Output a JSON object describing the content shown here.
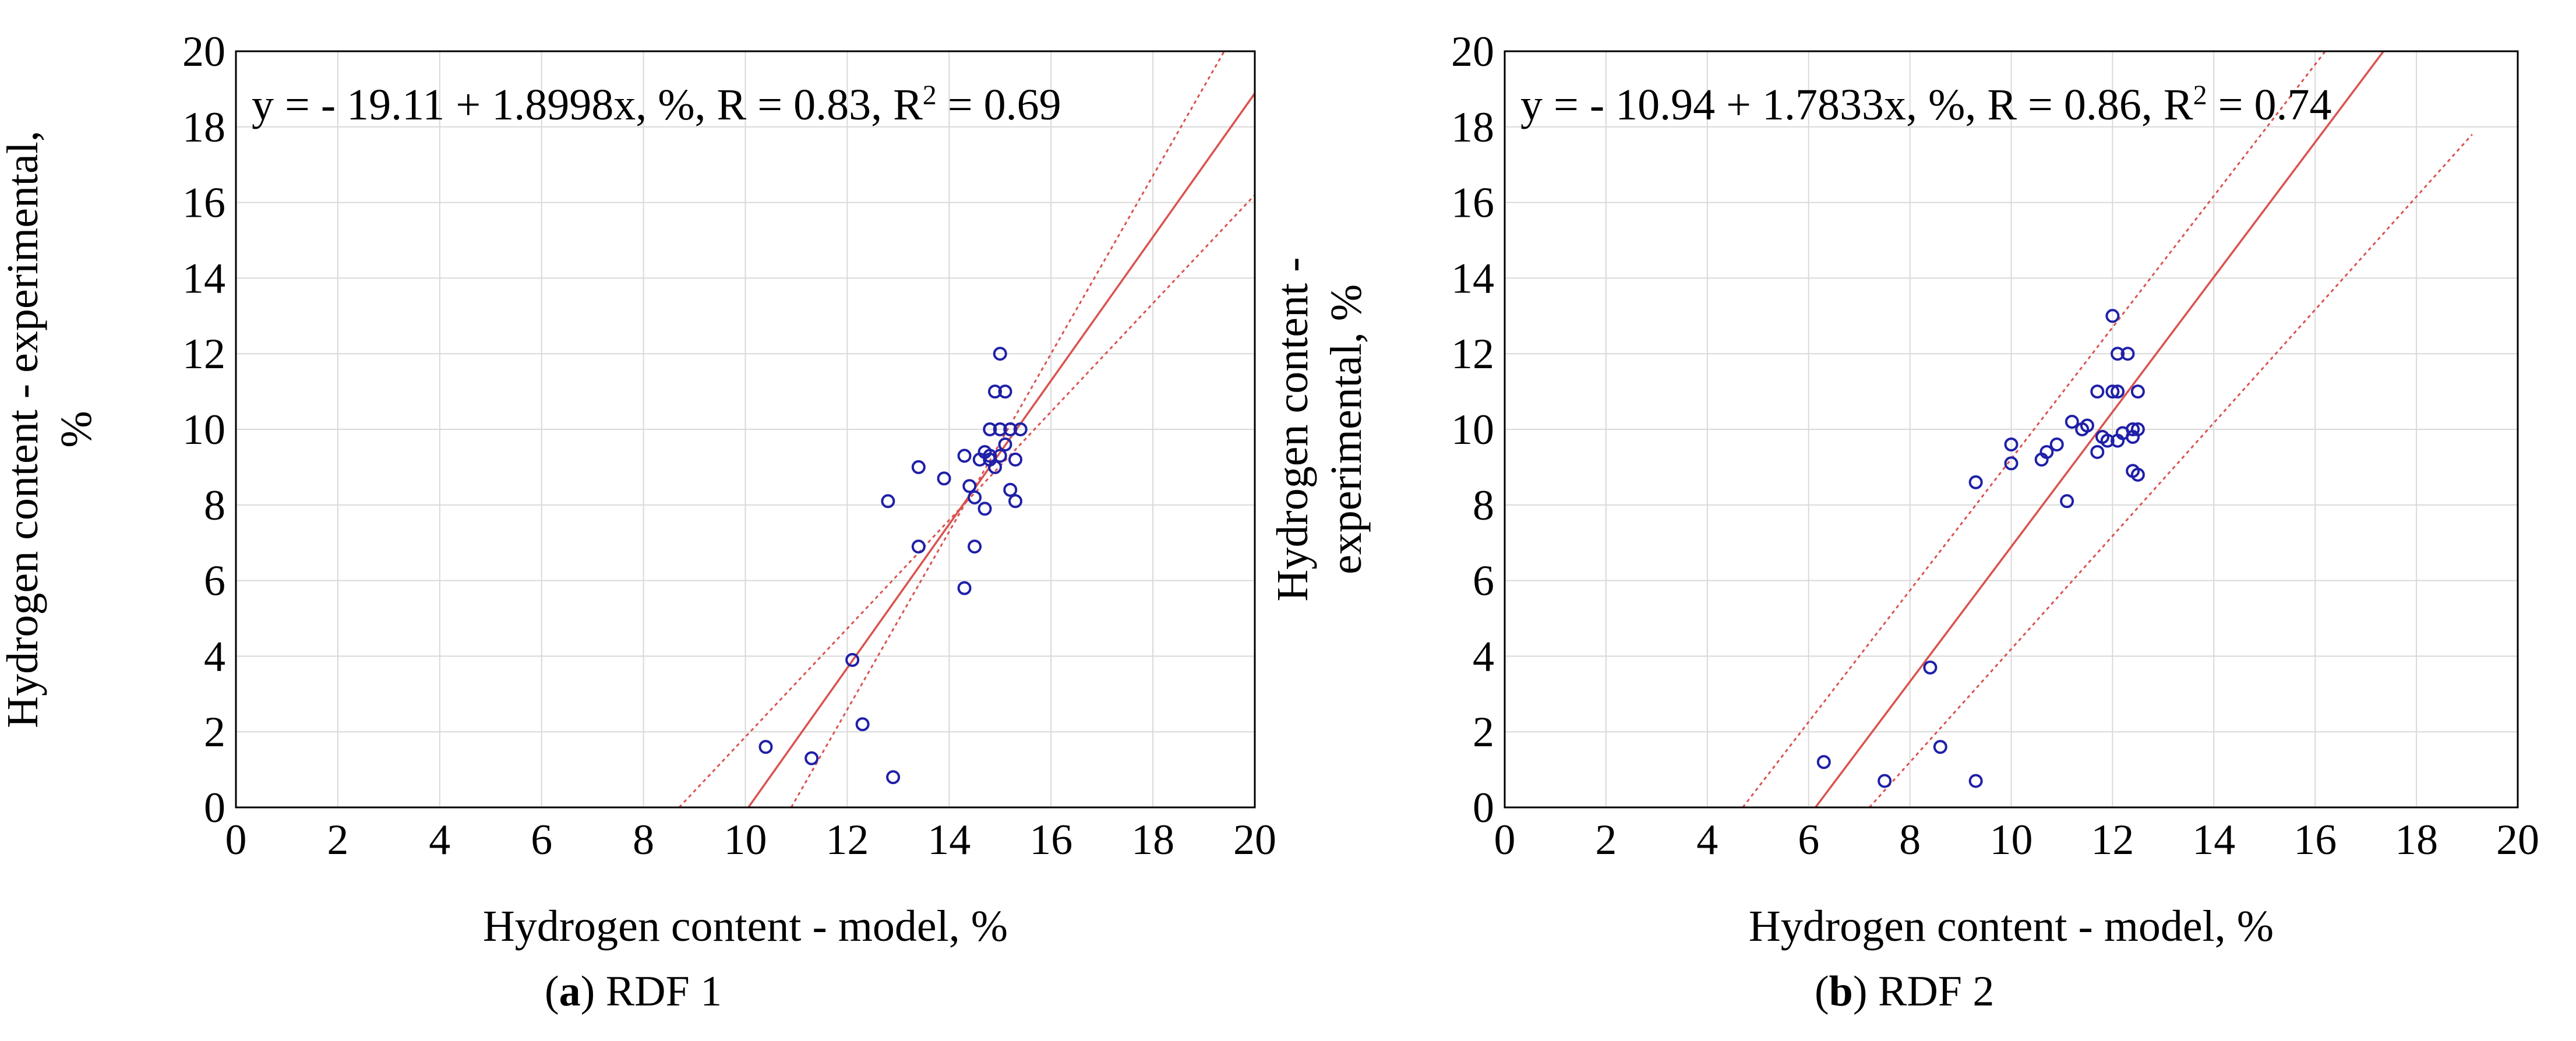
{
  "captions": [
    {
      "letter": "a",
      "text": " RDF 1"
    },
    {
      "letter": "b",
      "text": " RDF 2"
    }
  ],
  "chart_data": [
    {
      "type": "scatter",
      "xlabel": "Hydrogen content - model, %",
      "ylabel_lines": [
        "Hydrogen content - experimental,",
        "%"
      ],
      "xlim": [
        0,
        20
      ],
      "ylim": [
        0,
        20
      ],
      "xticks": [
        0,
        2,
        4,
        6,
        8,
        10,
        12,
        14,
        16,
        18,
        20
      ],
      "yticks": [
        0,
        2,
        4,
        6,
        8,
        10,
        12,
        14,
        16,
        18,
        20
      ],
      "grid": true,
      "equation": {
        "main": "y = - 19.11 + 1.8998x, %, R = 0.83, R",
        "sup": "2",
        "tail": " = 0.69"
      },
      "fit": {
        "intercept": -19.11,
        "slope": 1.8998
      },
      "band_lower": [
        [
          8.7,
          0.0
        ],
        [
          20.0,
          16.2
        ]
      ],
      "band_upper": [
        [
          10.9,
          0.0
        ],
        [
          19.4,
          20.0
        ]
      ],
      "x": [
        10.4,
        11.3,
        12.1,
        12.3,
        12.8,
        12.9,
        13.4,
        13.4,
        13.9,
        14.3,
        14.3,
        14.4,
        14.5,
        14.5,
        14.6,
        14.7,
        14.7,
        14.8,
        14.8,
        14.8,
        14.9,
        14.9,
        15.0,
        15.0,
        15.0,
        15.1,
        15.1,
        15.2,
        15.2,
        15.3,
        15.3,
        15.4
      ],
      "y": [
        1.6,
        1.3,
        3.9,
        2.2,
        8.1,
        0.8,
        9.0,
        6.9,
        8.7,
        9.3,
        5.8,
        8.5,
        6.9,
        8.2,
        9.2,
        9.4,
        7.9,
        9.3,
        10.0,
        9.2,
        11.0,
        9.0,
        9.3,
        10.0,
        12.0,
        11.0,
        9.6,
        10.0,
        8.4,
        9.2,
        8.1,
        10.0
      ]
    },
    {
      "type": "scatter",
      "xlabel": "Hydrogen content - model, %",
      "ylabel_lines": [
        "Hydrogen content -",
        "experimental, %"
      ],
      "xlim": [
        0,
        20
      ],
      "ylim": [
        0,
        20
      ],
      "xticks": [
        0,
        2,
        4,
        6,
        8,
        10,
        12,
        14,
        16,
        18,
        20
      ],
      "yticks": [
        0,
        2,
        4,
        6,
        8,
        10,
        12,
        14,
        16,
        18,
        20
      ],
      "grid": true,
      "equation": {
        "main": "y = - 10.94 + 1.7833x, %, R = 0.86, R",
        "sup": "2",
        "tail": " = 0.74"
      },
      "fit": {
        "intercept": -10.94,
        "slope": 1.7833
      },
      "band_lower": [
        [
          7.2,
          0.0
        ],
        [
          19.1,
          17.8
        ]
      ],
      "band_upper": [
        [
          4.7,
          0.0
        ],
        [
          16.2,
          20.0
        ]
      ],
      "x": [
        6.3,
        7.5,
        8.4,
        8.6,
        9.3,
        9.3,
        10.0,
        10.0,
        10.6,
        10.7,
        10.9,
        11.1,
        11.2,
        11.4,
        11.5,
        11.7,
        11.7,
        11.8,
        11.9,
        12.0,
        12.0,
        12.1,
        12.1,
        12.1,
        12.2,
        12.3,
        12.4,
        12.4,
        12.4,
        12.5,
        12.5,
        12.5
      ],
      "y": [
        1.2,
        0.7,
        3.7,
        1.6,
        8.6,
        0.7,
        9.6,
        9.1,
        9.2,
        9.4,
        9.6,
        8.1,
        10.2,
        10.0,
        10.1,
        9.4,
        11.0,
        9.8,
        9.7,
        13.0,
        11.0,
        12.0,
        11.0,
        9.7,
        9.9,
        12.0,
        8.9,
        9.8,
        10.0,
        11.0,
        8.8,
        10.0
      ]
    }
  ]
}
